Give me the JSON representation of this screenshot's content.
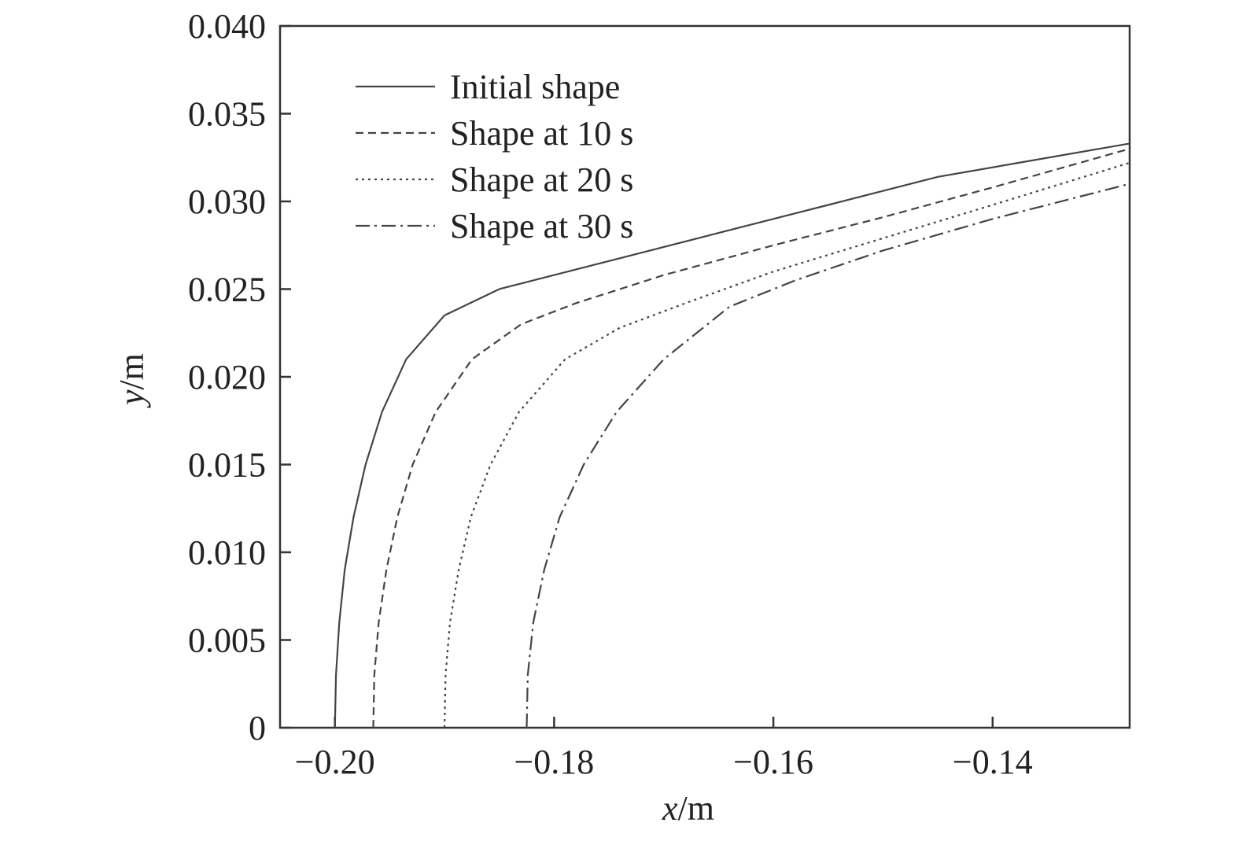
{
  "chart_data": {
    "type": "line",
    "title": "",
    "xlabel": {
      "var": "x",
      "unit": "/m"
    },
    "ylabel": {
      "var": "y",
      "unit": "/m"
    },
    "xlim": [
      -0.205,
      -0.1275
    ],
    "ylim": [
      0,
      0.04
    ],
    "x_ticks": [
      -0.2,
      -0.18,
      -0.16,
      -0.14
    ],
    "x_tick_labels": [
      "−0.20",
      "−0.18",
      "−0.16",
      "−0.14"
    ],
    "y_ticks": [
      0,
      0.005,
      0.01,
      0.015,
      0.02,
      0.025,
      0.03,
      0.035,
      0.04
    ],
    "y_tick_labels": [
      "0",
      "0.005",
      "0.010",
      "0.015",
      "0.020",
      "0.025",
      "0.030",
      "0.035",
      "0.040"
    ],
    "grid": false,
    "legend_position": "top-left",
    "series": [
      {
        "name": "Initial shape",
        "style": "solid",
        "color": "#444444",
        "points": [
          [
            -0.2,
            0.0
          ],
          [
            -0.1999,
            0.003
          ],
          [
            -0.1996,
            0.006
          ],
          [
            -0.1991,
            0.009
          ],
          [
            -0.1983,
            0.012
          ],
          [
            -0.1972,
            0.015
          ],
          [
            -0.1957,
            0.018
          ],
          [
            -0.1935,
            0.021
          ],
          [
            -0.19,
            0.0235
          ],
          [
            -0.185,
            0.025
          ],
          [
            -0.175,
            0.0266
          ],
          [
            -0.165,
            0.0282
          ],
          [
            -0.155,
            0.0298
          ],
          [
            -0.145,
            0.0314
          ],
          [
            -0.1275,
            0.0333
          ]
        ]
      },
      {
        "name": "Shape at 10 s",
        "style": "dashed",
        "color": "#444444",
        "points": [
          [
            -0.1965,
            0.0
          ],
          [
            -0.1964,
            0.003
          ],
          [
            -0.196,
            0.006
          ],
          [
            -0.1953,
            0.009
          ],
          [
            -0.1943,
            0.012
          ],
          [
            -0.1929,
            0.015
          ],
          [
            -0.1908,
            0.018
          ],
          [
            -0.1875,
            0.021
          ],
          [
            -0.183,
            0.023
          ],
          [
            -0.178,
            0.0242
          ],
          [
            -0.17,
            0.0258
          ],
          [
            -0.16,
            0.0275
          ],
          [
            -0.15,
            0.0291
          ],
          [
            -0.14,
            0.0308
          ],
          [
            -0.1275,
            0.033
          ]
        ]
      },
      {
        "name": "Shape at 20 s",
        "style": "dotted",
        "color": "#444444",
        "points": [
          [
            -0.19,
            0.0
          ],
          [
            -0.1899,
            0.003
          ],
          [
            -0.1895,
            0.006
          ],
          [
            -0.1887,
            0.009
          ],
          [
            -0.1876,
            0.012
          ],
          [
            -0.1858,
            0.015
          ],
          [
            -0.1832,
            0.018
          ],
          [
            -0.179,
            0.021
          ],
          [
            -0.174,
            0.0228
          ],
          [
            -0.168,
            0.0242
          ],
          [
            -0.16,
            0.026
          ],
          [
            -0.15,
            0.0279
          ],
          [
            -0.14,
            0.0298
          ],
          [
            -0.1275,
            0.0322
          ]
        ]
      },
      {
        "name": "Shape at 30 s",
        "style": "dash-dot",
        "color": "#444444",
        "points": [
          [
            -0.1825,
            0.0
          ],
          [
            -0.1824,
            0.003
          ],
          [
            -0.1819,
            0.006
          ],
          [
            -0.1809,
            0.009
          ],
          [
            -0.1795,
            0.012
          ],
          [
            -0.1773,
            0.015
          ],
          [
            -0.1743,
            0.018
          ],
          [
            -0.17,
            0.021
          ],
          [
            -0.164,
            0.024
          ],
          [
            -0.158,
            0.0255
          ],
          [
            -0.15,
            0.0272
          ],
          [
            -0.14,
            0.029
          ],
          [
            -0.1275,
            0.031
          ]
        ]
      }
    ]
  }
}
